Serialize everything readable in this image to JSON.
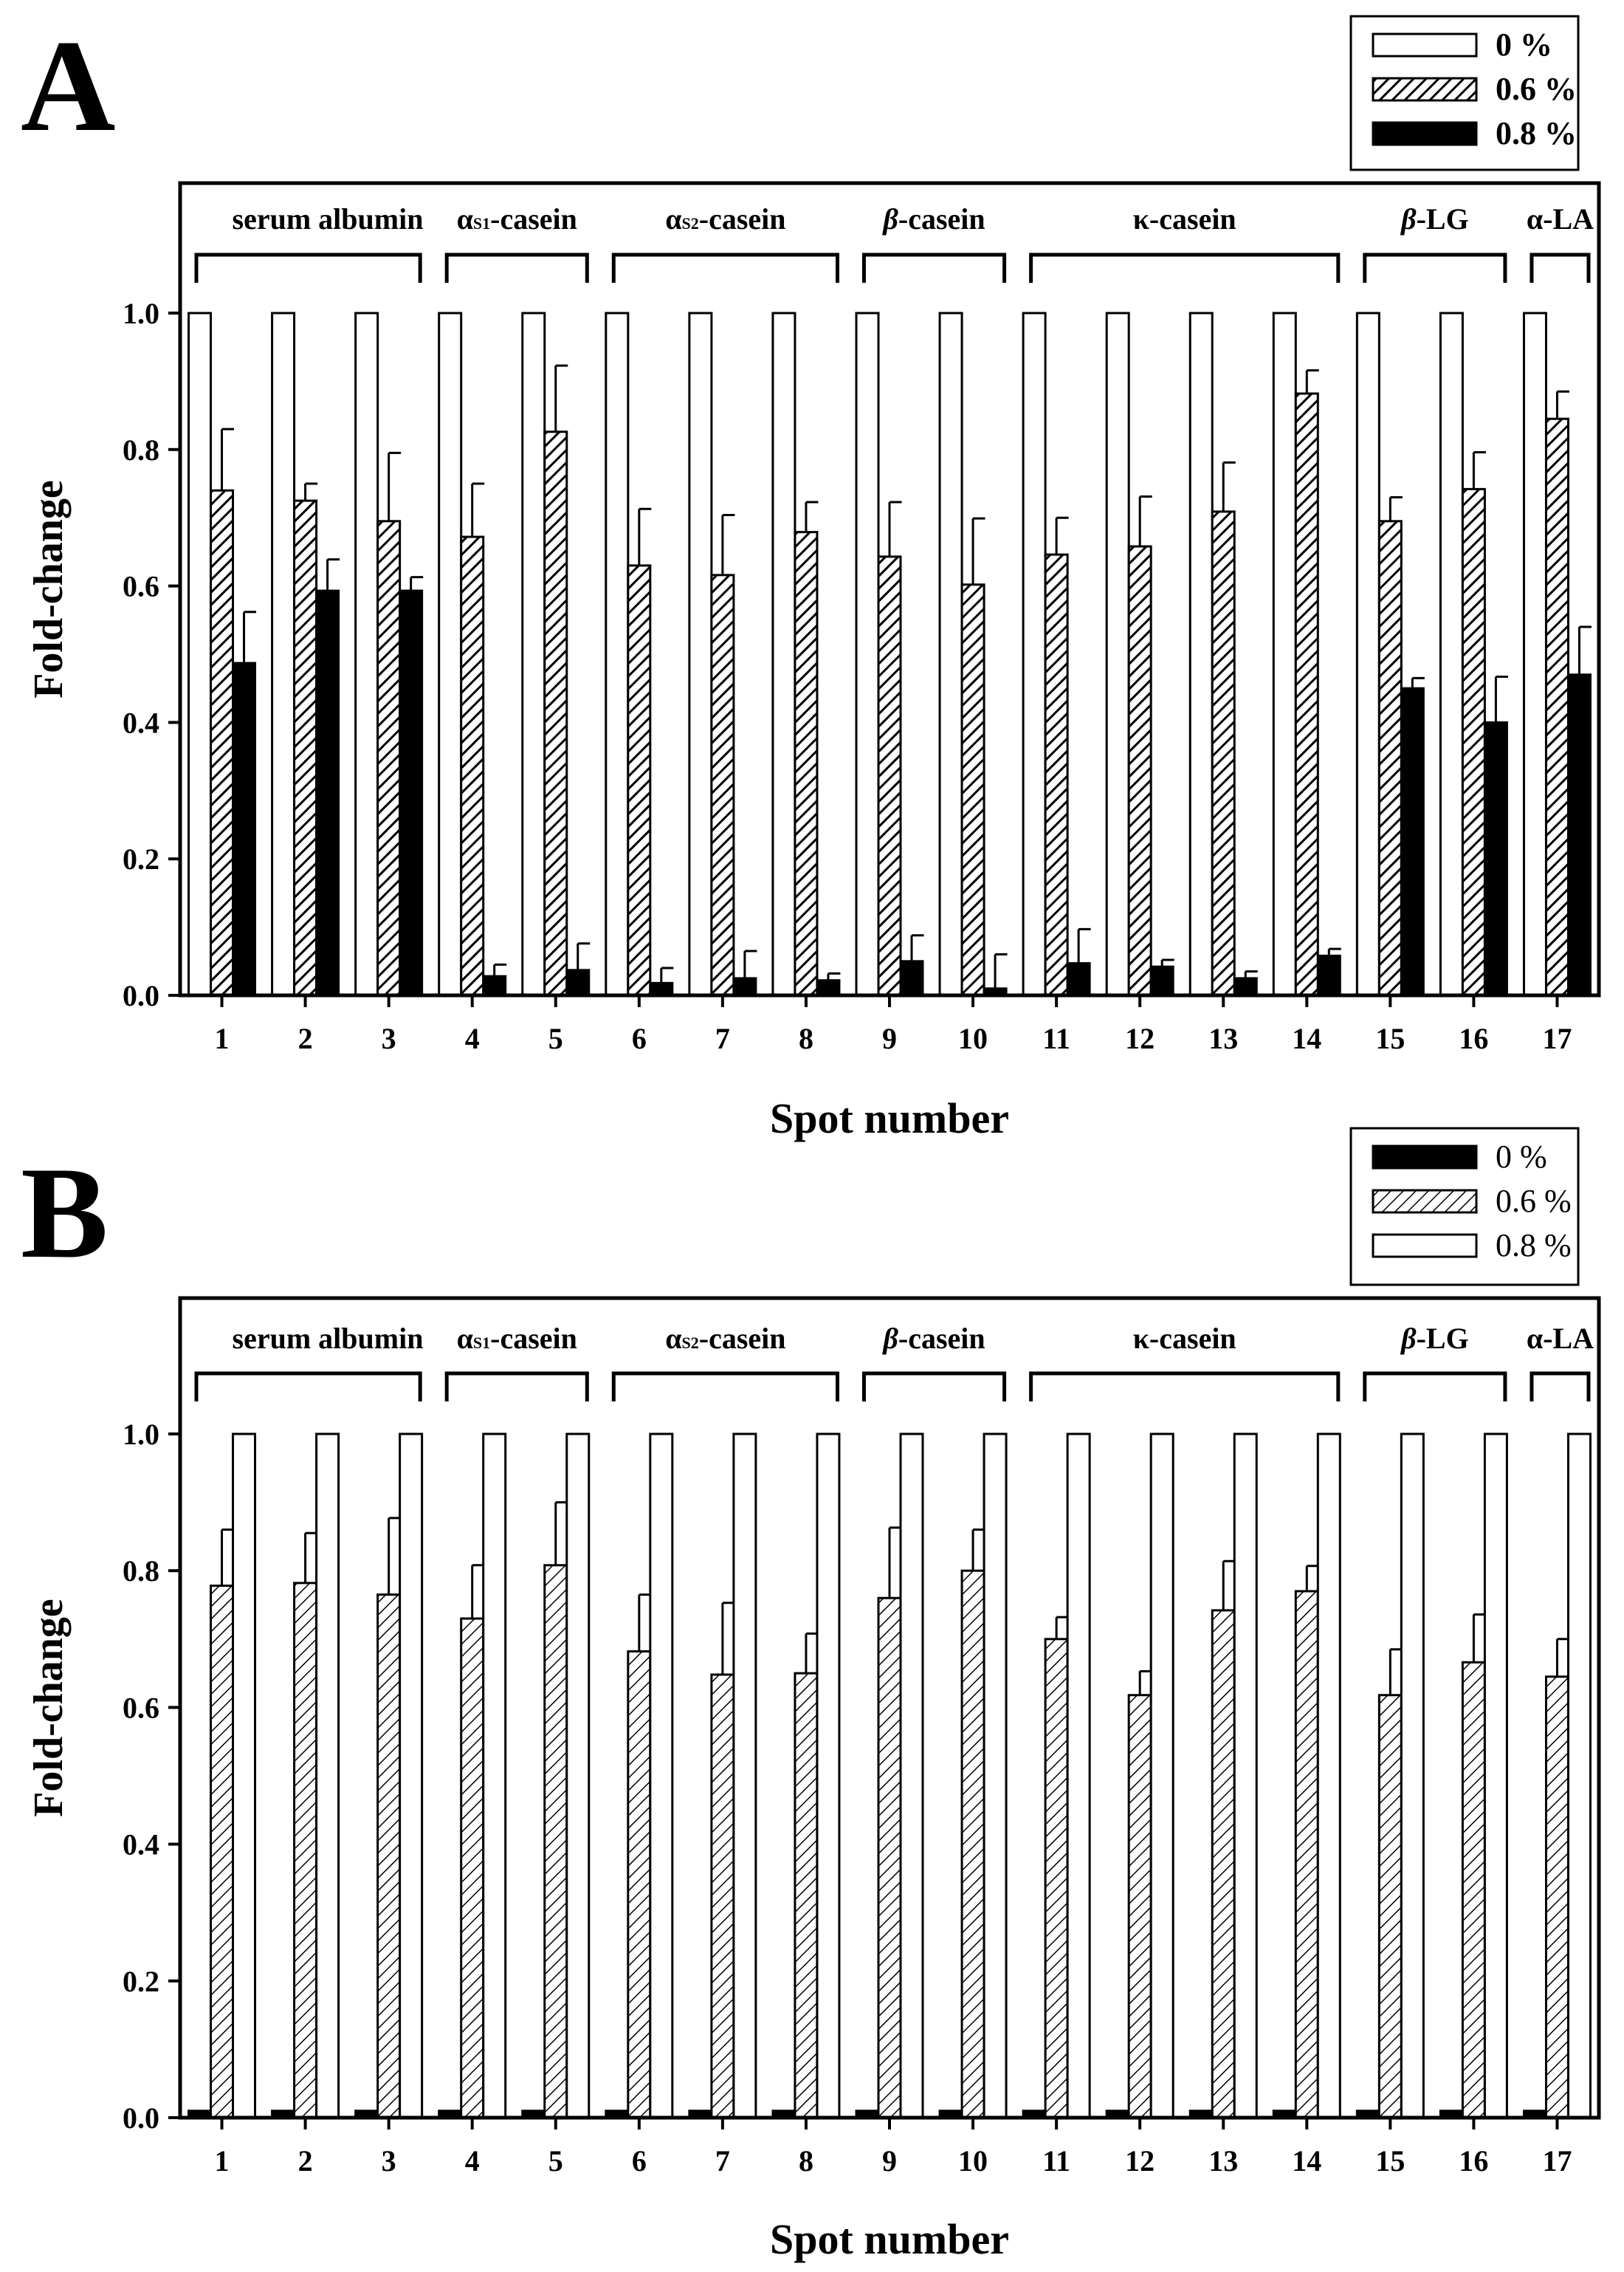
{
  "chart_data": [
    {
      "panel_label": "A",
      "type": "bar",
      "xlabel": "Spot number",
      "ylabel": "Fold-change",
      "ylim": [
        0,
        1.0
      ],
      "yticks": [
        "0.0",
        "0.2",
        "0.4",
        "0.6",
        "0.8",
        "1.0"
      ],
      "grid": false,
      "legend_position": "top-right",
      "legend_style": "bold",
      "categories": [
        "1",
        "2",
        "3",
        "4",
        "5",
        "6",
        "7",
        "8",
        "9",
        "10",
        "11",
        "12",
        "13",
        "14",
        "15",
        "16",
        "17"
      ],
      "groups": [
        {
          "label": "serum albumin",
          "from": 1,
          "to": 3
        },
        {
          "label": "αs1-casein",
          "from": 4,
          "to": 5
        },
        {
          "label": "αs2-casein",
          "from": 6,
          "to": 8
        },
        {
          "label": "β-casein",
          "from": 9,
          "to": 10
        },
        {
          "label": "κ-casein",
          "from": 11,
          "to": 14
        },
        {
          "label": "β-LG",
          "from": 15,
          "to": 16
        },
        {
          "label": "α-LA",
          "from": 17,
          "to": 17
        }
      ],
      "series": [
        {
          "name": "0 %",
          "fill": "white",
          "values": [
            1,
            1,
            1,
            1,
            1,
            1,
            1,
            1,
            1,
            1,
            1,
            1,
            1,
            1,
            1,
            1,
            1
          ],
          "errors": [
            0,
            0,
            0,
            0,
            0,
            0,
            0,
            0,
            0,
            0,
            0,
            0,
            0,
            0,
            0,
            0,
            0
          ]
        },
        {
          "name": "0.6 %",
          "fill": "hatch",
          "values": [
            0.74,
            0.725,
            0.695,
            0.672,
            0.826,
            0.63,
            0.616,
            0.679,
            0.643,
            0.602,
            0.646,
            0.658,
            0.709,
            0.882,
            0.695,
            0.742,
            0.845
          ],
          "errors": [
            0.09,
            0.025,
            0.1,
            0.078,
            0.097,
            0.083,
            0.088,
            0.044,
            0.08,
            0.097,
            0.054,
            0.073,
            0.072,
            0.034,
            0.035,
            0.054,
            0.04
          ]
        },
        {
          "name": "0.8 %",
          "fill": "black",
          "values": [
            0.487,
            0.593,
            0.593,
            0.028,
            0.037,
            0.018,
            0.025,
            0.022,
            0.05,
            0.01,
            0.047,
            0.042,
            0.025,
            0.058,
            0.45,
            0.4,
            0.47
          ],
          "errors": [
            0.075,
            0.046,
            0.02,
            0.017,
            0.039,
            0.022,
            0.04,
            0.01,
            0.038,
            0.05,
            0.05,
            0.01,
            0.01,
            0.01,
            0.015,
            0.067,
            0.07
          ]
        }
      ]
    },
    {
      "panel_label": "B",
      "type": "bar",
      "xlabel": "Spot number",
      "ylabel": "Fold-change",
      "ylim": [
        0,
        1.0
      ],
      "yticks": [
        "0.0",
        "0.2",
        "0.4",
        "0.6",
        "0.8",
        "1.0"
      ],
      "grid": false,
      "legend_position": "top-right",
      "legend_style": "normal",
      "categories": [
        "1",
        "2",
        "3",
        "4",
        "5",
        "6",
        "7",
        "8",
        "9",
        "10",
        "11",
        "12",
        "13",
        "14",
        "15",
        "16",
        "17"
      ],
      "groups": [
        {
          "label": "serum albumin",
          "from": 1,
          "to": 3
        },
        {
          "label": "αs1-casein",
          "from": 4,
          "to": 5
        },
        {
          "label": "αs2-casein",
          "from": 6,
          "to": 8
        },
        {
          "label": "β-casein",
          "from": 9,
          "to": 10
        },
        {
          "label": "κ-casein",
          "from": 11,
          "to": 14
        },
        {
          "label": "β-LG",
          "from": 15,
          "to": 16
        },
        {
          "label": "α-LA",
          "from": 17,
          "to": 17
        }
      ],
      "series": [
        {
          "name": "0 %",
          "fill": "black",
          "values": [
            0.01,
            0.01,
            0.01,
            0.01,
            0.01,
            0.01,
            0.01,
            0.01,
            0.01,
            0.01,
            0.01,
            0.01,
            0.01,
            0.01,
            0.01,
            0.01,
            0.01
          ],
          "errors": [
            0,
            0,
            0,
            0,
            0,
            0,
            0,
            0,
            0,
            0,
            0,
            0,
            0,
            0,
            0,
            0,
            0
          ]
        },
        {
          "name": "0.6 %",
          "fill": "hatch",
          "values": [
            0.778,
            0.782,
            0.765,
            0.73,
            0.808,
            0.682,
            0.648,
            0.65,
            0.76,
            0.8,
            0.7,
            0.618,
            0.742,
            0.77,
            0.618,
            0.666,
            0.645
          ],
          "errors": [
            0.082,
            0.073,
            0.112,
            0.078,
            0.092,
            0.083,
            0.105,
            0.058,
            0.103,
            0.06,
            0.032,
            0.035,
            0.072,
            0.037,
            0.067,
            0.07,
            0.055
          ]
        },
        {
          "name": "0.8 %",
          "fill": "white",
          "values": [
            1,
            1,
            1,
            1,
            1,
            1,
            1,
            1,
            1,
            1,
            1,
            1,
            1,
            1,
            1,
            1,
            1
          ],
          "errors": [
            0,
            0,
            0,
            0,
            0,
            0,
            0,
            0,
            0,
            0,
            0,
            0,
            0,
            0,
            0,
            0,
            0
          ]
        }
      ]
    }
  ]
}
